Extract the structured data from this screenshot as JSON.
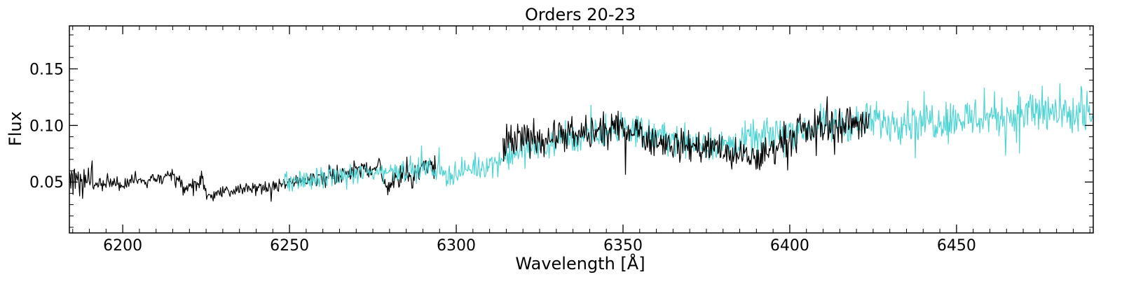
{
  "chart_data": {
    "type": "line",
    "title": "Orders 20-23",
    "xlabel": "Wavelength [Å]",
    "ylabel": "Flux",
    "xlim": [
      6184,
      6491
    ],
    "ylim": [
      0.005,
      0.188
    ],
    "xticks": [
      6200,
      6250,
      6300,
      6350,
      6400,
      6450
    ],
    "yticks": [
      0.05,
      0.1,
      0.15
    ],
    "xtick_labels": [
      "6200",
      "6250",
      "6300",
      "6350",
      "6400",
      "6450"
    ],
    "ytick_labels": [
      "0.05",
      "0.10",
      "0.15"
    ],
    "grid": false,
    "colors": {
      "black": "#000000",
      "cyan": "#4dd4d4",
      "overlap": "#108f8f"
    },
    "series": [
      {
        "color": "black",
        "x": [
          6184,
          6187,
          6190,
          6195,
          6200,
          6205,
          6210,
          6215,
          6217,
          6218,
          6220,
          6224,
          6225,
          6226,
          6230,
          6235,
          6240,
          6245,
          6250,
          6255,
          6260,
          6265,
          6270,
          6275,
          6277,
          6278,
          6280,
          6285,
          6290,
          6294
        ],
        "y": [
          0.055,
          0.052,
          0.05,
          0.049,
          0.05,
          0.051,
          0.054,
          0.056,
          0.05,
          0.04,
          0.045,
          0.053,
          0.04,
          0.038,
          0.041,
          0.043,
          0.045,
          0.046,
          0.048,
          0.051,
          0.054,
          0.058,
          0.06,
          0.063,
          0.065,
          0.048,
          0.05,
          0.055,
          0.062,
          0.068
        ],
        "noise": [
          0.011,
          0.013,
          0.009,
          0.006,
          0.006,
          0.007,
          0.006,
          0.006,
          0.006,
          0.006,
          0.006,
          0.008,
          0.005,
          0.004,
          0.004,
          0.004,
          0.005,
          0.005,
          0.006,
          0.006,
          0.007,
          0.008,
          0.007,
          0.007,
          0.007,
          0.008,
          0.009,
          0.01,
          0.011,
          0.011
        ]
      },
      {
        "color": "cyan",
        "x": [
          6248,
          6250,
          6260,
          6270,
          6280,
          6290,
          6300,
          6310,
          6314,
          6320,
          6330,
          6340,
          6350,
          6355,
          6360,
          6380,
          6390,
          6400,
          6410,
          6420,
          6430,
          6440,
          6450,
          6460,
          6470,
          6475,
          6480,
          6491
        ],
        "y": [
          0.05,
          0.05,
          0.053,
          0.057,
          0.06,
          0.062,
          0.057,
          0.066,
          0.07,
          0.078,
          0.085,
          0.09,
          0.097,
          0.095,
          0.09,
          0.082,
          0.088,
          0.095,
          0.1,
          0.102,
          0.104,
          0.105,
          0.106,
          0.108,
          0.11,
          0.113,
          0.11,
          0.105
        ],
        "noise": [
          0.008,
          0.008,
          0.008,
          0.008,
          0.008,
          0.009,
          0.009,
          0.009,
          0.01,
          0.01,
          0.011,
          0.011,
          0.012,
          0.012,
          0.012,
          0.013,
          0.013,
          0.013,
          0.014,
          0.014,
          0.015,
          0.016,
          0.016,
          0.016,
          0.018,
          0.02,
          0.018,
          0.016
        ]
      },
      {
        "color": "black",
        "x": [
          6314,
          6320,
          6330,
          6340,
          6350,
          6355,
          6360,
          6370,
          6380
        ],
        "y": [
          0.082,
          0.088,
          0.09,
          0.092,
          0.098,
          0.095,
          0.085,
          0.082,
          0.08
        ],
        "noise": [
          0.014,
          0.014,
          0.013,
          0.013,
          0.012,
          0.012,
          0.012,
          0.012,
          0.012
        ]
      },
      {
        "color": "black",
        "x": [
          6380,
          6385,
          6390,
          6395,
          6400,
          6410,
          6420,
          6424
        ],
        "y": [
          0.075,
          0.072,
          0.07,
          0.08,
          0.09,
          0.1,
          0.103,
          0.104
        ],
        "noise": [
          0.012,
          0.012,
          0.012,
          0.013,
          0.013,
          0.014,
          0.014,
          0.014
        ]
      }
    ]
  }
}
